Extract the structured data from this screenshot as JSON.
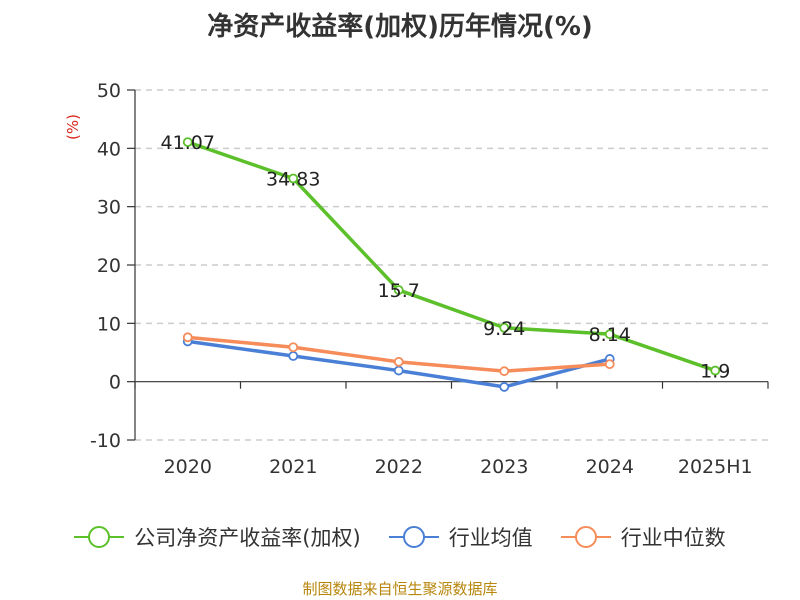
{
  "chart_data": {
    "type": "line",
    "title": "净资产收益率(加权)历年情况(%)",
    "unit": "(%)",
    "categories": [
      "2020",
      "2021",
      "2022",
      "2023",
      "2024",
      "2025H1"
    ],
    "ylim": [
      -10,
      50
    ],
    "yticks": [
      "50",
      "40",
      "30",
      "20",
      "10",
      "0",
      "-10"
    ],
    "grid": true,
    "legend_position": "bottom",
    "series": [
      {
        "name": "公司净资产收益率(加权)",
        "color": "#5cc02a",
        "values": [
          41.07,
          34.83,
          15.7,
          9.24,
          8.14,
          1.9
        ],
        "labels": [
          "41.07",
          "34.83",
          "15.7",
          "9.24",
          "8.14",
          "1.9"
        ]
      },
      {
        "name": "行业均值",
        "color": "#4a7fd6",
        "values": [
          6.9,
          4.4,
          1.9,
          -0.9,
          3.9,
          null
        ]
      },
      {
        "name": "行业中位数",
        "color": "#f58c5a",
        "values": [
          7.6,
          5.9,
          3.4,
          1.8,
          3.0,
          null
        ]
      }
    ]
  },
  "footer": {
    "source": "制图数据来自恒生聚源数据库"
  }
}
